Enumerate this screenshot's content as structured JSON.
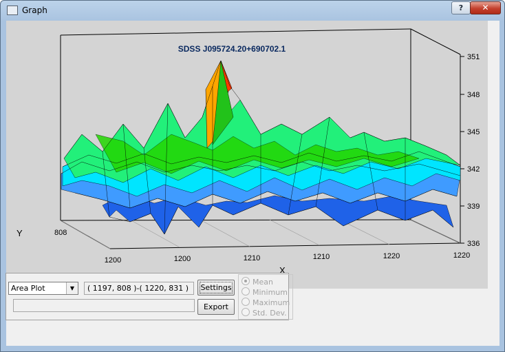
{
  "window": {
    "title": "Graph",
    "help_label": "?",
    "close_label": "✕"
  },
  "chart_data": {
    "type": "surface-3d",
    "title": "SDSS J095724.20+690702.1",
    "xlabel": "X",
    "ylabel": "Y",
    "x_ticks": [
      "1200",
      "1200",
      "1210",
      "1210",
      "1220",
      "1220"
    ],
    "y_ticks": [
      "808"
    ],
    "z_ticks": [
      "351",
      "348",
      "345",
      "342",
      "339",
      "336"
    ],
    "zlim": [
      336,
      351
    ],
    "colormap": [
      "#0b3fd6",
      "#3f9bff",
      "#00e5ff",
      "#22f07a",
      "#22d600",
      "#ffa500",
      "#ff3b00"
    ]
  },
  "controls": {
    "plot_type": "Area Plot",
    "range": "( 1197, 808 )-( 1220, 831 )",
    "settings_label": "Settings",
    "export_label": "Export",
    "status_text": "",
    "stats": [
      {
        "label": "Mean",
        "checked": true
      },
      {
        "label": "Minimum",
        "checked": false
      },
      {
        "label": "Maximum",
        "checked": false
      },
      {
        "label": "Std. Dev.",
        "checked": false
      }
    ]
  }
}
